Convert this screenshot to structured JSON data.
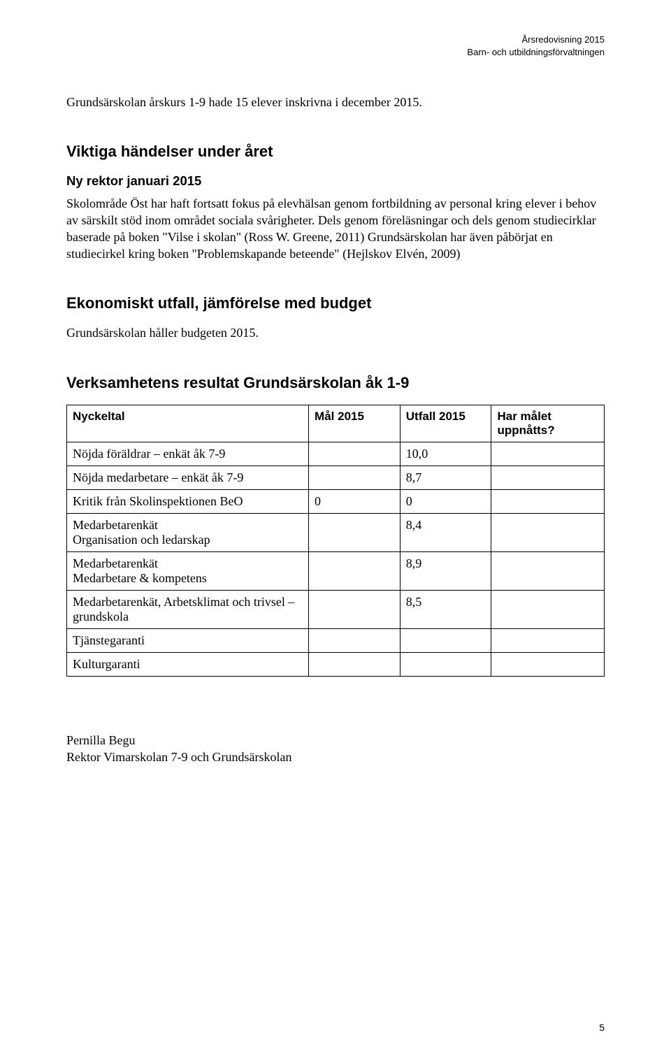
{
  "header": {
    "line1": "Årsredovisning 2015",
    "line2": "Barn- och utbildningsförvaltningen"
  },
  "intro": "Grundsärskolan årskurs 1-9 hade 15 elever inskrivna i december 2015.",
  "section_events": {
    "heading": "Viktiga händelser under året",
    "subheading": "Ny rektor januari 2015",
    "paragraph": "Skolområde Öst har haft fortsatt fokus på elevhälsan genom fortbildning av personal kring elever i behov av särskilt stöd inom området sociala svårigheter. Dels genom föreläsningar och dels genom studiecirklar baserade på boken \"Vilse i skolan\" (Ross W. Greene, 2011) Grundsärskolan har även påbörjat en studiecirkel kring boken \"Problemskapande beteende\" (Hejlskov Elvén, 2009)"
  },
  "section_economy": {
    "heading": "Ekonomiskt utfall, jämförelse med budget",
    "paragraph": "Grundsärskolan håller budgeten 2015."
  },
  "section_results": {
    "heading": "Verksamhetens resultat Grundsärskolan åk 1-9",
    "table": {
      "columns": [
        "Nyckeltal",
        "Mål 2015",
        "Utfall 2015",
        "Har målet uppnåtts?"
      ],
      "rows": [
        {
          "nyckeltal": "Nöjda föräldrar – enkät åk 7-9",
          "mal": "",
          "utfall": "10,0",
          "har": ""
        },
        {
          "nyckeltal": "Nöjda medarbetare – enkät åk 7-9",
          "mal": "",
          "utfall": "8,7",
          "har": ""
        },
        {
          "nyckeltal": "Kritik från Skolinspektionen BeO",
          "mal": "0",
          "utfall": "0",
          "har": ""
        },
        {
          "nyckeltal": "Medarbetarenkät\nOrganisation och ledarskap",
          "mal": "",
          "utfall": "8,4",
          "har": ""
        },
        {
          "nyckeltal": "Medarbetarenkät\nMedarbetare & kompetens",
          "mal": "",
          "utfall": "8,9",
          "har": ""
        },
        {
          "nyckeltal": "Medarbetarenkät, Arbetsklimat och trivsel – grundskola",
          "mal": "",
          "utfall": "8,5",
          "har": ""
        },
        {
          "nyckeltal": "Tjänstegaranti",
          "mal": "",
          "utfall": "",
          "har": ""
        },
        {
          "nyckeltal": "Kulturgaranti",
          "mal": "",
          "utfall": "",
          "har": ""
        }
      ]
    }
  },
  "signature": {
    "name": "Pernilla Begu",
    "title": "Rektor Vimarskolan 7-9 och Grundsärskolan"
  },
  "page_number": "5"
}
